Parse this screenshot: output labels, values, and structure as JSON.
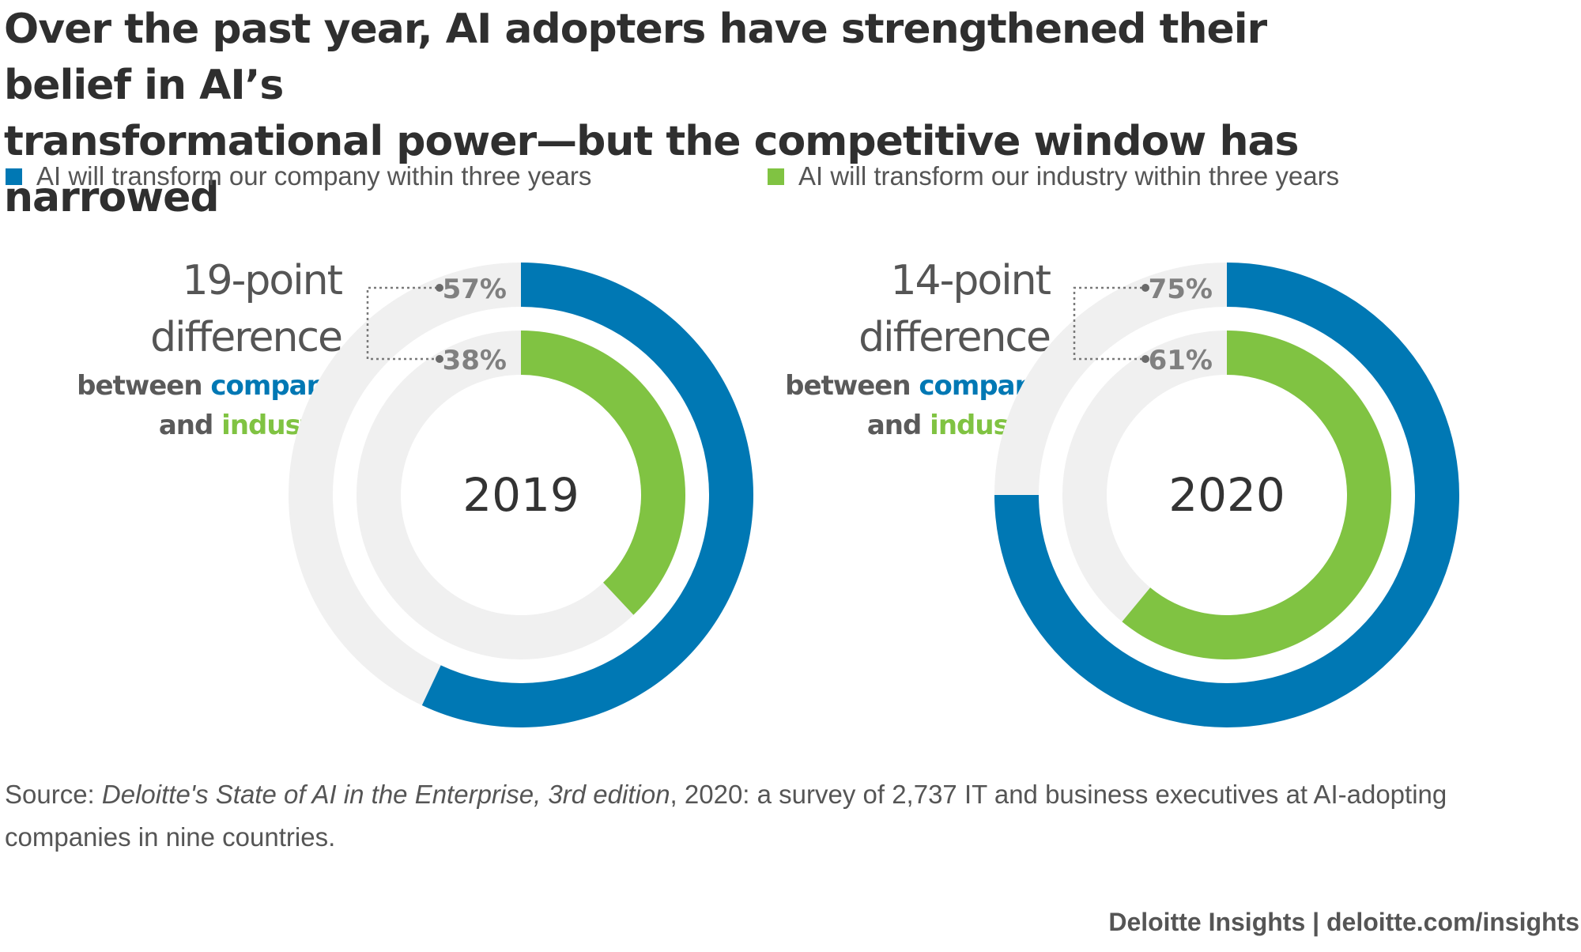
{
  "title_line1": "Over the past year, AI adopters have strengthened their belief in AI’s",
  "title_line2": "transformational power—but the competitive window has narrowed",
  "colors": {
    "company": "#0078B4",
    "industry": "#80C342",
    "track": "#F0F0F0",
    "dark": "#5a5a5a"
  },
  "legend": [
    {
      "label": "AI will transform our company within three years"
    },
    {
      "label": "AI will transform our industry within three years"
    }
  ],
  "chart_data": [
    {
      "type": "pie",
      "center_label": "2019",
      "series": [
        {
          "name": "AI will transform our company within three years",
          "values": [
            57
          ],
          "label": "57%"
        },
        {
          "name": "AI will transform our industry within three years",
          "values": [
            38
          ],
          "label": "38%"
        }
      ],
      "annotation": {
        "big_line1": "19-point",
        "big_line2": "difference",
        "between": "between",
        "company": "company",
        "and": "and",
        "industry": "industry"
      }
    },
    {
      "type": "pie",
      "center_label": "2020",
      "series": [
        {
          "name": "AI will transform our company within three years",
          "values": [
            75
          ],
          "label": "75%"
        },
        {
          "name": "AI will transform our industry within three years",
          "values": [
            61
          ],
          "label": "61%"
        }
      ],
      "annotation": {
        "big_line1": "14-point",
        "big_line2": "difference",
        "between": "between",
        "company": "company",
        "and": "and",
        "industry": "industry"
      }
    }
  ],
  "source": {
    "prefix": "Source: ",
    "title": "Deloitte's State of AI in the Enterprise, 3rd edition",
    "rest": ", 2020: a survey of 2,737 IT and business executives at AI-adopting companies in nine countries."
  },
  "footer": "Deloitte Insights | deloitte.com/insights"
}
